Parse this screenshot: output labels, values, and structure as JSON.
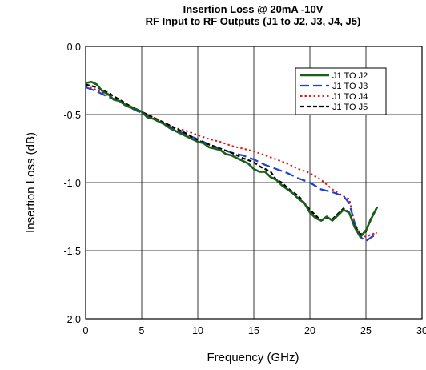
{
  "chart_data": {
    "type": "line",
    "title": "Insertion Loss @ 20mA -10V",
    "subtitle": "RF Input to RF Outputs (J1 to J2, J3, J4, J5)",
    "xlabel": "Frequency (GHz)",
    "ylabel": "Insertion Loss (dB)",
    "xlim": [
      0,
      30
    ],
    "ylim": [
      -2.0,
      0.0
    ],
    "x_ticks": [
      "0",
      "5",
      "10",
      "15",
      "20",
      "25",
      "30"
    ],
    "y_ticks": [
      "0.0",
      "-0.5",
      "-1.0",
      "-1.5",
      "-2.0"
    ],
    "grid": true,
    "legend_position": "top-right",
    "series": [
      {
        "name": "J1 TO J2",
        "color": "#1a5e1a",
        "dash": "solid",
        "x": [
          0,
          0.5,
          1,
          1.5,
          2,
          2.5,
          3,
          3.5,
          4,
          4.5,
          5,
          5.5,
          6,
          6.5,
          7,
          7.5,
          8,
          8.5,
          9,
          9.5,
          10,
          10.5,
          11,
          11.5,
          12,
          12.5,
          13,
          13.5,
          14,
          14.5,
          15,
          15.5,
          16,
          16.5,
          17,
          17.5,
          18,
          18.5,
          19,
          19.5,
          20,
          20.5,
          21,
          21.5,
          22,
          22.5,
          23,
          23.5,
          24,
          24.5,
          25,
          25.5,
          26
        ],
        "y": [
          -0.27,
          -0.26,
          -0.28,
          -0.33,
          -0.35,
          -0.39,
          -0.4,
          -0.43,
          -0.45,
          -0.46,
          -0.48,
          -0.52,
          -0.53,
          -0.55,
          -0.57,
          -0.6,
          -0.62,
          -0.64,
          -0.66,
          -0.68,
          -0.7,
          -0.71,
          -0.74,
          -0.75,
          -0.76,
          -0.79,
          -0.8,
          -0.82,
          -0.84,
          -0.86,
          -0.9,
          -0.92,
          -0.92,
          -0.96,
          -0.98,
          -1.02,
          -1.05,
          -1.08,
          -1.12,
          -1.15,
          -1.22,
          -1.26,
          -1.28,
          -1.25,
          -1.28,
          -1.24,
          -1.2,
          -1.22,
          -1.33,
          -1.4,
          -1.35,
          -1.26,
          -1.18
        ]
      },
      {
        "name": "J1 TO J3",
        "color": "#1f3fd6",
        "dash": "long-dash",
        "x": [
          0,
          1,
          2,
          3,
          4,
          5,
          6,
          7,
          8,
          9,
          10,
          11,
          12,
          13,
          14,
          15,
          16,
          17,
          18,
          19,
          20,
          21,
          22,
          23,
          23.5,
          24,
          24.5,
          25,
          25.5,
          26
        ],
        "y": [
          -0.3,
          -0.33,
          -0.37,
          -0.4,
          -0.45,
          -0.49,
          -0.53,
          -0.57,
          -0.61,
          -0.65,
          -0.68,
          -0.72,
          -0.75,
          -0.78,
          -0.8,
          -0.83,
          -0.87,
          -0.9,
          -0.93,
          -0.97,
          -1.0,
          -1.05,
          -1.07,
          -1.1,
          -1.15,
          -1.3,
          -1.4,
          -1.43,
          -1.4,
          -1.38
        ]
      },
      {
        "name": "J1 TO J4",
        "color": "#e01818",
        "dash": "dotted",
        "x": [
          0,
          1,
          2,
          3,
          4,
          5,
          6,
          7,
          8,
          9,
          10,
          11,
          12,
          13,
          14,
          15,
          16,
          17,
          18,
          19,
          20,
          21,
          22,
          23,
          23.5,
          24,
          24.5,
          25,
          25.5,
          26
        ],
        "y": [
          -0.29,
          -0.32,
          -0.36,
          -0.4,
          -0.44,
          -0.48,
          -0.52,
          -0.56,
          -0.6,
          -0.62,
          -0.65,
          -0.68,
          -0.7,
          -0.73,
          -0.75,
          -0.77,
          -0.8,
          -0.83,
          -0.86,
          -0.9,
          -0.93,
          -0.98,
          -1.05,
          -1.1,
          -1.12,
          -1.3,
          -1.38,
          -1.4,
          -1.38,
          -1.37
        ]
      },
      {
        "name": "J1 TO J5",
        "color": "#000000",
        "dash": "dashed",
        "x": [
          0,
          1,
          2,
          3,
          4,
          5,
          6,
          7,
          8,
          9,
          10,
          11,
          12,
          13,
          14,
          15,
          15.5,
          16,
          16.5,
          17,
          17.5,
          18,
          18.5,
          19,
          19.5,
          20,
          20.5,
          21,
          21.5,
          22,
          22.5,
          23,
          23.5,
          24,
          24.5,
          25,
          25.5,
          26
        ],
        "y": [
          -0.28,
          -0.3,
          -0.34,
          -0.39,
          -0.44,
          -0.48,
          -0.52,
          -0.56,
          -0.6,
          -0.64,
          -0.69,
          -0.72,
          -0.75,
          -0.78,
          -0.82,
          -0.85,
          -0.88,
          -0.9,
          -0.92,
          -0.98,
          -1.0,
          -1.04,
          -1.07,
          -1.1,
          -1.15,
          -1.2,
          -1.24,
          -1.28,
          -1.26,
          -1.27,
          -1.23,
          -1.19,
          -1.22,
          -1.32,
          -1.38,
          -1.36,
          -1.25,
          -1.18
        ]
      }
    ]
  }
}
